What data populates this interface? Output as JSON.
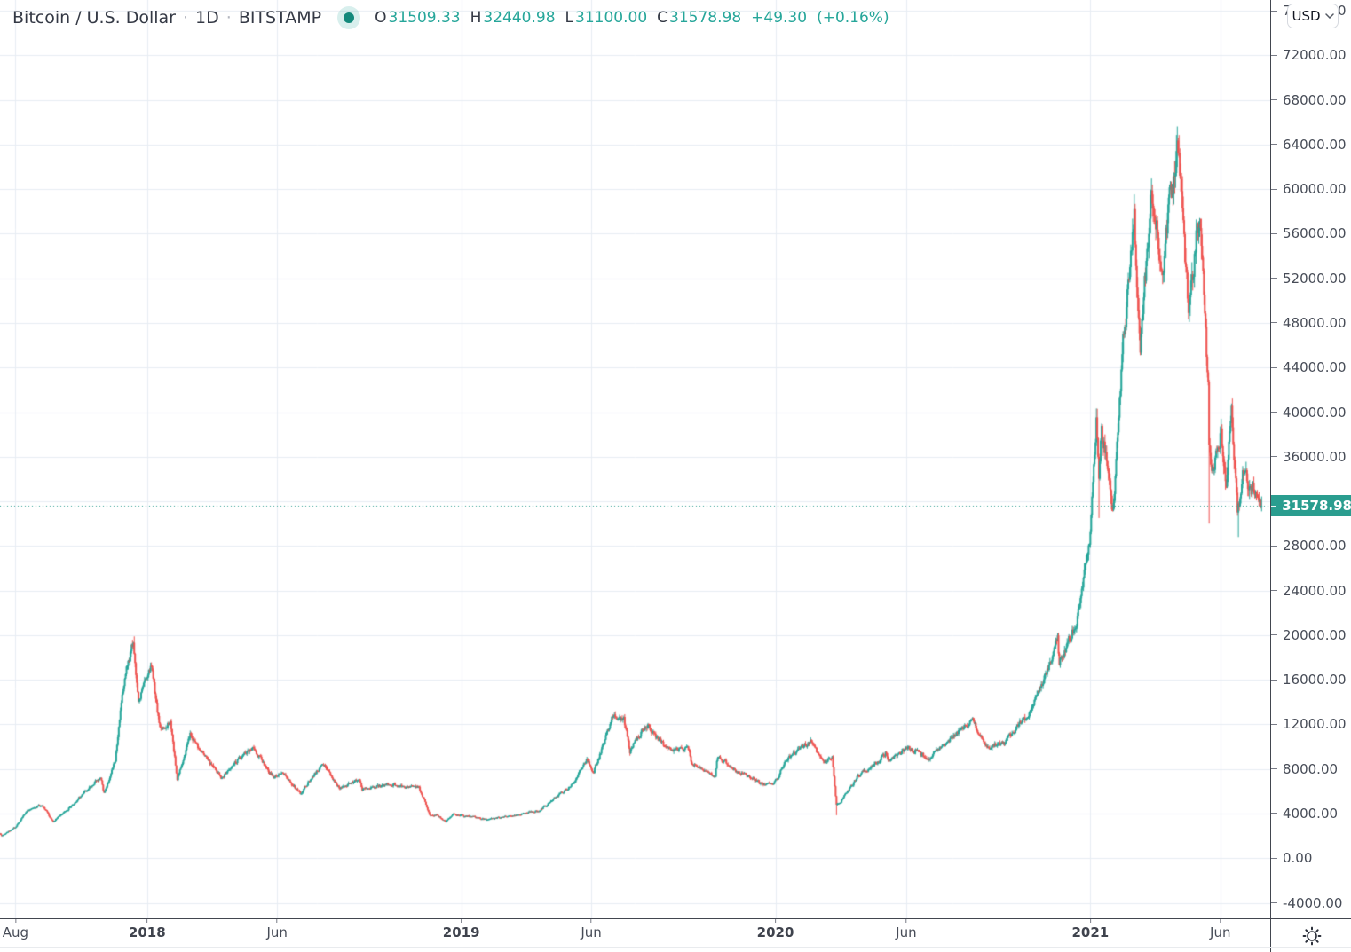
{
  "header": {
    "symbol_title": "Bitcoin / U.S. Dollar",
    "separator": "·",
    "interval": "1D",
    "exchange": "BITSTAMP",
    "ohlc": {
      "open_label": "O",
      "open": "31509.33",
      "high_label": "H",
      "high": "32440.98",
      "low_label": "L",
      "low": "31100.00",
      "close_label": "C",
      "close": "31578.98",
      "change": "+49.30",
      "change_percent": "(+0.16%)"
    }
  },
  "price_scale": {
    "currency_button": "USD",
    "current_price": "31578.98",
    "ticks": [
      "76000.00",
      "72000.00",
      "68000.00",
      "64000.00",
      "60000.00",
      "56000.00",
      "52000.00",
      "48000.00",
      "44000.00",
      "40000.00",
      "36000.00",
      "28000.00",
      "24000.00",
      "20000.00",
      "16000.00",
      "12000.00",
      "8000.00",
      "4000.00",
      "0.00",
      "-4000.00"
    ]
  },
  "time_scale": {
    "ticks": [
      {
        "label": "Aug",
        "date": "2017-08-01",
        "bold": false
      },
      {
        "label": "2018",
        "date": "2018-01-01",
        "bold": true
      },
      {
        "label": "Jun",
        "date": "2018-06-01",
        "bold": false
      },
      {
        "label": "2019",
        "date": "2019-01-01",
        "bold": true
      },
      {
        "label": "Jun",
        "date": "2019-06-01",
        "bold": false
      },
      {
        "label": "2020",
        "date": "2020-01-01",
        "bold": true
      },
      {
        "label": "Jun",
        "date": "2020-06-01",
        "bold": false
      },
      {
        "label": "2021",
        "date": "2021-01-01",
        "bold": true
      },
      {
        "label": "Jun",
        "date": "2021-06-01",
        "bold": false
      }
    ]
  },
  "icons": {
    "market_status": "filled-circle",
    "currency_dropdown": "chevron-down",
    "corner": "sun"
  },
  "colors": {
    "background": "#ffffff",
    "grid": "#e8edf3",
    "up": "#26a69a",
    "down": "#ef5350",
    "axis_text": "#474c57",
    "axis_border": "#42464f",
    "tick_mark": "#787b86",
    "title_text": "#343945",
    "value_text": "#26a69a",
    "badge_bg": "#2a9d8f",
    "badge_text": "#ffffff",
    "status_dot": "#13897b"
  },
  "chart_data": {
    "type": "candlestick",
    "title": "Bitcoin / U.S. Dollar",
    "interval": "1D",
    "exchange": "BITSTAMP",
    "legend": "none",
    "grid": true,
    "current_price": 31578.98,
    "last_ohlc": {
      "open": 31509.33,
      "high": 32440.98,
      "low": 31100.0,
      "close": 31578.98,
      "change": 49.3,
      "change_pct": 0.16
    },
    "ylim": [
      -5390,
      76960
    ],
    "grid_price_min": -4000,
    "grid_price_max": 76000,
    "grid_price_step": 4000,
    "x_range": [
      "2017-07-14",
      "2021-07-29"
    ],
    "price_keypoints": [
      [
        "2017-07-14",
        2250
      ],
      [
        "2017-07-16",
        1980
      ],
      [
        "2017-08-01",
        2750
      ],
      [
        "2017-08-15",
        4250
      ],
      [
        "2017-09-01",
        4800
      ],
      [
        "2017-09-14",
        3250
      ],
      [
        "2017-10-01",
        4350
      ],
      [
        "2017-10-21",
        6050
      ],
      [
        "2017-11-08",
        7400
      ],
      [
        "2017-11-12",
        5900
      ],
      [
        "2017-11-25",
        8750
      ],
      [
        "2017-12-07",
        16800
      ],
      [
        "2017-12-16",
        19500
      ],
      [
        "2017-12-22",
        13800
      ],
      [
        "2017-12-28",
        15500
      ],
      [
        "2018-01-06",
        17100
      ],
      [
        "2018-01-16",
        11500
      ],
      [
        "2018-01-28",
        11800
      ],
      [
        "2018-02-05",
        7000
      ],
      [
        "2018-02-20",
        11200
      ],
      [
        "2018-03-09",
        9200
      ],
      [
        "2018-03-29",
        7100
      ],
      [
        "2018-04-24",
        9650
      ],
      [
        "2018-05-05",
        9850
      ],
      [
        "2018-05-28",
        7100
      ],
      [
        "2018-06-06",
        7650
      ],
      [
        "2018-06-28",
        5900
      ],
      [
        "2018-07-24",
        8400
      ],
      [
        "2018-08-13",
        6200
      ],
      [
        "2018-09-04",
        7350
      ],
      [
        "2018-09-08",
        6250
      ],
      [
        "2018-10-15",
        6550
      ],
      [
        "2018-11-13",
        6350
      ],
      [
        "2018-11-25",
        3800
      ],
      [
        "2018-12-03",
        3900
      ],
      [
        "2018-12-14",
        3250
      ],
      [
        "2018-12-24",
        4050
      ],
      [
        "2019-01-30",
        3450
      ],
      [
        "2019-03-01",
        3850
      ],
      [
        "2019-04-01",
        4150
      ],
      [
        "2019-04-23",
        5550
      ],
      [
        "2019-05-13",
        7000
      ],
      [
        "2019-05-27",
        8750
      ],
      [
        "2019-06-04",
        7700
      ],
      [
        "2019-06-26",
        12900
      ],
      [
        "2019-07-09",
        12600
      ],
      [
        "2019-07-16",
        9700
      ],
      [
        "2019-08-06",
        11800
      ],
      [
        "2019-08-28",
        9750
      ],
      [
        "2019-09-23",
        9700
      ],
      [
        "2019-09-25",
        8450
      ],
      [
        "2019-10-23",
        7500
      ],
      [
        "2019-10-26",
        9250
      ],
      [
        "2019-11-21",
        7600
      ],
      [
        "2019-12-17",
        6650
      ],
      [
        "2020-01-02",
        6950
      ],
      [
        "2020-01-14",
        8800
      ],
      [
        "2020-02-12",
        10300
      ],
      [
        "2020-02-26",
        8800
      ],
      [
        "2020-03-07",
        9100
      ],
      [
        "2020-03-12",
        4900
      ],
      [
        "2020-03-16",
        5000
      ],
      [
        "2020-04-06",
        7300
      ],
      [
        "2020-04-29",
        8800
      ],
      [
        "2020-05-09",
        9550
      ],
      [
        "2020-05-11",
        8600
      ],
      [
        "2020-06-01",
        9700
      ],
      [
        "2020-06-27",
        9050
      ],
      [
        "2020-07-27",
        11000
      ],
      [
        "2020-08-17",
        12300
      ],
      [
        "2020-09-05",
        10150
      ],
      [
        "2020-09-23",
        10250
      ],
      [
        "2020-10-21",
        12800
      ],
      [
        "2020-11-24",
        19100
      ],
      [
        "2020-11-26",
        17150
      ],
      [
        "2020-12-16",
        21300
      ],
      [
        "2020-12-31",
        29000
      ],
      [
        "2021-01-08",
        40600
      ],
      [
        "2021-01-11",
        35500
      ],
      [
        "2021-01-14",
        39200
      ],
      [
        "2021-01-27",
        30400
      ],
      [
        "2021-02-08",
        46400
      ],
      [
        "2021-02-21",
        57400
      ],
      [
        "2021-02-28",
        45200
      ],
      [
        "2021-03-13",
        61200
      ],
      [
        "2021-03-25",
        51300
      ],
      [
        "2021-04-13",
        63500
      ],
      [
        "2021-04-25",
        49100
      ],
      [
        "2021-05-08",
        58800
      ],
      [
        "2021-05-18",
        42900
      ],
      [
        "2021-05-19",
        36700
      ],
      [
        "2021-05-23",
        34700
      ],
      [
        "2021-06-02",
        37600
      ],
      [
        "2021-06-08",
        33400
      ],
      [
        "2021-06-14",
        40500
      ],
      [
        "2021-06-21",
        31600
      ],
      [
        "2021-06-29",
        35900
      ],
      [
        "2021-07-05",
        33700
      ],
      [
        "2021-07-13",
        32800
      ],
      [
        "2021-07-19",
        31578.98
      ]
    ],
    "wick_events": [
      {
        "date": "2017-12-17",
        "high": 19891
      },
      {
        "date": "2020-03-12",
        "low": 3850
      },
      {
        "date": "2021-01-11",
        "low": 30500
      },
      {
        "date": "2021-04-14",
        "high": 64854
      },
      {
        "date": "2021-05-19",
        "low": 30000
      },
      {
        "date": "2021-06-22",
        "low": 28800
      }
    ]
  }
}
